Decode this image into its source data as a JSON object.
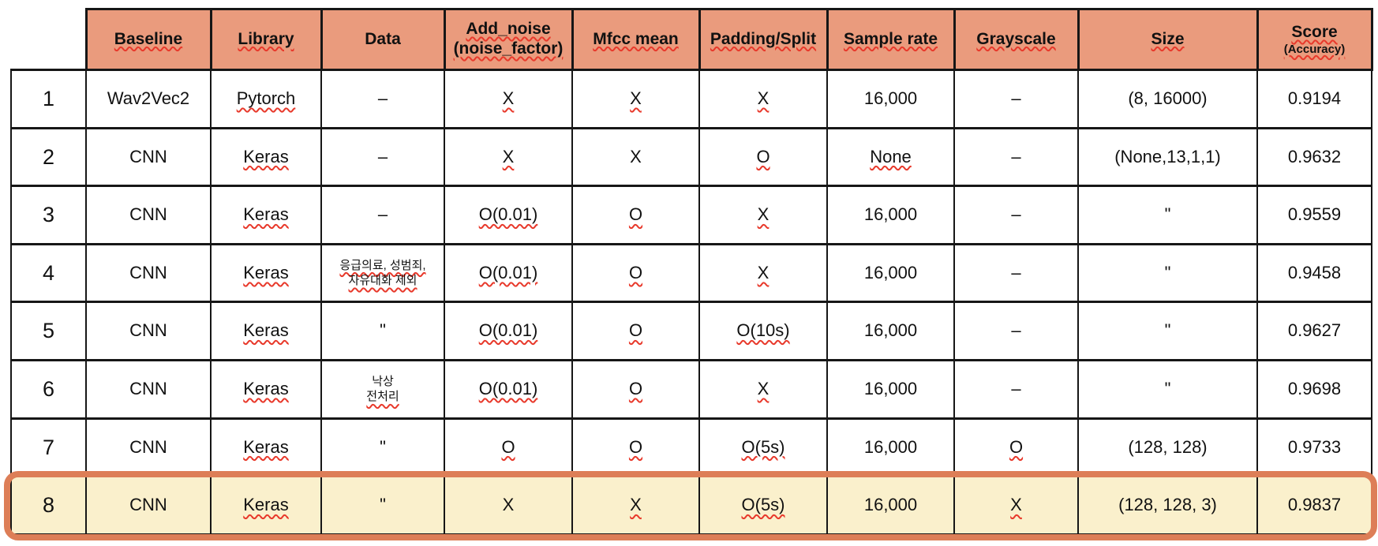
{
  "colors": {
    "header_bg": "#EA9B7D",
    "highlight_bg": "#FAF0CC",
    "highlight_ring": "#DD7E57",
    "grid": "#161616",
    "squiggle": "#E8392B"
  },
  "table": {
    "columns": [
      {
        "id": "baseline",
        "label": "Baseline",
        "squiggle": true
      },
      {
        "id": "library",
        "label": "Library",
        "squiggle": true
      },
      {
        "id": "data",
        "label": "Data",
        "squiggle": false
      },
      {
        "id": "add-noise",
        "label": "Add_noise",
        "label2": "(noise_factor)",
        "label2_small": false,
        "squiggle": true
      },
      {
        "id": "mfcc-mean",
        "label": "Mfcc mean",
        "squiggle": true
      },
      {
        "id": "padding-split",
        "label": "Padding/Split",
        "squiggle": true
      },
      {
        "id": "sample-rate",
        "label": "Sample rate",
        "squiggle": true
      },
      {
        "id": "grayscale",
        "label": "Grayscale",
        "squiggle": true
      },
      {
        "id": "size",
        "label": "Size",
        "squiggle": true
      },
      {
        "id": "score",
        "label": "Score",
        "label2": "(Accuracy)",
        "label2_small": true,
        "squiggle": true
      }
    ],
    "rows": [
      {
        "num": "1",
        "highlight": false,
        "cells": [
          {
            "lines": [
              {
                "text": "Wav2Vec2",
                "squiggle": false
              }
            ]
          },
          {
            "lines": [
              {
                "text": "Pytorch",
                "squiggle": true
              }
            ]
          },
          {
            "lines": [
              {
                "text": "–",
                "squiggle": false
              }
            ]
          },
          {
            "lines": [
              {
                "text": "X",
                "squiggle": true
              }
            ]
          },
          {
            "lines": [
              {
                "text": "X",
                "squiggle": true
              }
            ]
          },
          {
            "lines": [
              {
                "text": "X",
                "squiggle": true
              }
            ]
          },
          {
            "lines": [
              {
                "text": "16,000",
                "squiggle": false
              }
            ]
          },
          {
            "lines": [
              {
                "text": "–",
                "squiggle": false
              }
            ]
          },
          {
            "lines": [
              {
                "text": "(8, 16000)",
                "squiggle": false
              }
            ]
          },
          {
            "lines": [
              {
                "text": "0.9194",
                "squiggle": false
              }
            ]
          }
        ]
      },
      {
        "num": "2",
        "highlight": false,
        "cells": [
          {
            "lines": [
              {
                "text": "CNN",
                "squiggle": false
              }
            ]
          },
          {
            "lines": [
              {
                "text": "Keras",
                "squiggle": true
              }
            ]
          },
          {
            "lines": [
              {
                "text": "–",
                "squiggle": false
              }
            ]
          },
          {
            "lines": [
              {
                "text": "X",
                "squiggle": true
              }
            ]
          },
          {
            "lines": [
              {
                "text": "X",
                "squiggle": false
              }
            ]
          },
          {
            "lines": [
              {
                "text": "O",
                "squiggle": true
              }
            ]
          },
          {
            "lines": [
              {
                "text": "None",
                "squiggle": true
              }
            ]
          },
          {
            "lines": [
              {
                "text": "–",
                "squiggle": false
              }
            ]
          },
          {
            "lines": [
              {
                "text": "(None,13,1,1)",
                "squiggle": false
              }
            ]
          },
          {
            "lines": [
              {
                "text": "0.9632",
                "squiggle": false
              }
            ]
          }
        ]
      },
      {
        "num": "3",
        "highlight": false,
        "cells": [
          {
            "lines": [
              {
                "text": "CNN",
                "squiggle": false
              }
            ]
          },
          {
            "lines": [
              {
                "text": "Keras",
                "squiggle": true
              }
            ]
          },
          {
            "lines": [
              {
                "text": "–",
                "squiggle": false
              }
            ]
          },
          {
            "lines": [
              {
                "text": "O(0.01)",
                "squiggle": true
              }
            ]
          },
          {
            "lines": [
              {
                "text": "O",
                "squiggle": true
              }
            ]
          },
          {
            "lines": [
              {
                "text": "X",
                "squiggle": true
              }
            ]
          },
          {
            "lines": [
              {
                "text": "16,000",
                "squiggle": false
              }
            ]
          },
          {
            "lines": [
              {
                "text": "–",
                "squiggle": false
              }
            ]
          },
          {
            "lines": [
              {
                "text": "\"",
                "squiggle": false
              }
            ]
          },
          {
            "lines": [
              {
                "text": "0.9559",
                "squiggle": false
              }
            ]
          }
        ]
      },
      {
        "num": "4",
        "highlight": false,
        "cells": [
          {
            "lines": [
              {
                "text": "CNN",
                "squiggle": false
              }
            ]
          },
          {
            "lines": [
              {
                "text": "Keras",
                "squiggle": true
              }
            ]
          },
          {
            "lines": [
              {
                "text": "응급의료, 성범죄,",
                "squiggle": true,
                "small": true
              },
              {
                "text": "자유대화 제외",
                "squiggle": true,
                "small": true
              }
            ]
          },
          {
            "lines": [
              {
                "text": "O(0.01)",
                "squiggle": true
              }
            ]
          },
          {
            "lines": [
              {
                "text": "O",
                "squiggle": true
              }
            ]
          },
          {
            "lines": [
              {
                "text": "X",
                "squiggle": true
              }
            ]
          },
          {
            "lines": [
              {
                "text": "16,000",
                "squiggle": false
              }
            ]
          },
          {
            "lines": [
              {
                "text": "–",
                "squiggle": false
              }
            ]
          },
          {
            "lines": [
              {
                "text": "\"",
                "squiggle": false
              }
            ]
          },
          {
            "lines": [
              {
                "text": "0.9458",
                "squiggle": false
              }
            ]
          }
        ]
      },
      {
        "num": "5",
        "highlight": false,
        "cells": [
          {
            "lines": [
              {
                "text": "CNN",
                "squiggle": false
              }
            ]
          },
          {
            "lines": [
              {
                "text": "Keras",
                "squiggle": true
              }
            ]
          },
          {
            "lines": [
              {
                "text": "\"",
                "squiggle": false
              }
            ]
          },
          {
            "lines": [
              {
                "text": "O(0.01)",
                "squiggle": true
              }
            ]
          },
          {
            "lines": [
              {
                "text": "O",
                "squiggle": true
              }
            ]
          },
          {
            "lines": [
              {
                "text": "O(10s)",
                "squiggle": true
              }
            ]
          },
          {
            "lines": [
              {
                "text": "16,000",
                "squiggle": false
              }
            ]
          },
          {
            "lines": [
              {
                "text": "–",
                "squiggle": false
              }
            ]
          },
          {
            "lines": [
              {
                "text": "\"",
                "squiggle": false
              }
            ]
          },
          {
            "lines": [
              {
                "text": "0.9627",
                "squiggle": false
              }
            ]
          }
        ]
      },
      {
        "num": "6",
        "highlight": false,
        "cells": [
          {
            "lines": [
              {
                "text": "CNN",
                "squiggle": false
              }
            ]
          },
          {
            "lines": [
              {
                "text": "Keras",
                "squiggle": true
              }
            ]
          },
          {
            "lines": [
              {
                "text": "낙상",
                "squiggle": false,
                "small": true
              },
              {
                "text": "전처리",
                "squiggle": true,
                "small": true
              }
            ]
          },
          {
            "lines": [
              {
                "text": "O(0.01)",
                "squiggle": true
              }
            ]
          },
          {
            "lines": [
              {
                "text": "O",
                "squiggle": true
              }
            ]
          },
          {
            "lines": [
              {
                "text": "X",
                "squiggle": true
              }
            ]
          },
          {
            "lines": [
              {
                "text": "16,000",
                "squiggle": false
              }
            ]
          },
          {
            "lines": [
              {
                "text": "–",
                "squiggle": false
              }
            ]
          },
          {
            "lines": [
              {
                "text": "\"",
                "squiggle": false
              }
            ]
          },
          {
            "lines": [
              {
                "text": "0.9698",
                "squiggle": false
              }
            ]
          }
        ]
      },
      {
        "num": "7",
        "highlight": false,
        "cells": [
          {
            "lines": [
              {
                "text": "CNN",
                "squiggle": false
              }
            ]
          },
          {
            "lines": [
              {
                "text": "Keras",
                "squiggle": true
              }
            ]
          },
          {
            "lines": [
              {
                "text": "\"",
                "squiggle": false
              }
            ]
          },
          {
            "lines": [
              {
                "text": "O",
                "squiggle": true
              }
            ]
          },
          {
            "lines": [
              {
                "text": "O",
                "squiggle": true
              }
            ]
          },
          {
            "lines": [
              {
                "text": "O(5s)",
                "squiggle": true
              }
            ]
          },
          {
            "lines": [
              {
                "text": "16,000",
                "squiggle": false
              }
            ]
          },
          {
            "lines": [
              {
                "text": "O",
                "squiggle": true
              }
            ]
          },
          {
            "lines": [
              {
                "text": "(128, 128)",
                "squiggle": false
              }
            ]
          },
          {
            "lines": [
              {
                "text": "0.9733",
                "squiggle": false
              }
            ]
          }
        ]
      },
      {
        "num": "8",
        "highlight": true,
        "cells": [
          {
            "lines": [
              {
                "text": "CNN",
                "squiggle": false
              }
            ]
          },
          {
            "lines": [
              {
                "text": "Keras",
                "squiggle": true
              }
            ]
          },
          {
            "lines": [
              {
                "text": "\"",
                "squiggle": false
              }
            ]
          },
          {
            "lines": [
              {
                "text": "X",
                "squiggle": false
              }
            ]
          },
          {
            "lines": [
              {
                "text": "X",
                "squiggle": true
              }
            ]
          },
          {
            "lines": [
              {
                "text": "O(5s)",
                "squiggle": true
              }
            ]
          },
          {
            "lines": [
              {
                "text": "16,000",
                "squiggle": false
              }
            ]
          },
          {
            "lines": [
              {
                "text": "X",
                "squiggle": true
              }
            ]
          },
          {
            "lines": [
              {
                "text": "(128, 128, 3)",
                "squiggle": false
              }
            ]
          },
          {
            "lines": [
              {
                "text": "0.9837",
                "squiggle": false
              }
            ]
          }
        ]
      }
    ]
  }
}
